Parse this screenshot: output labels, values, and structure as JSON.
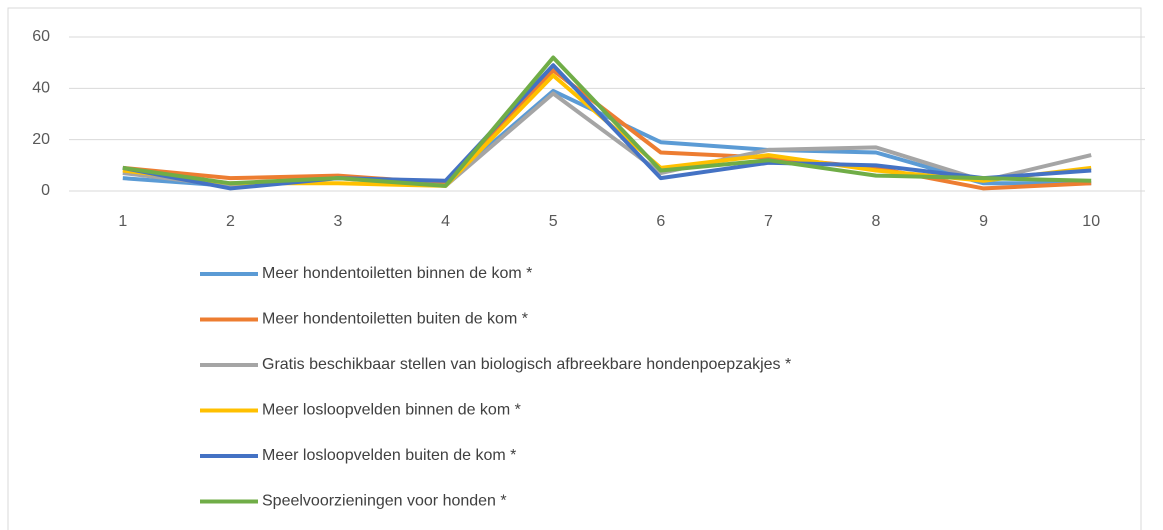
{
  "chart_data": {
    "type": "line",
    "categories": [
      1,
      2,
      3,
      4,
      5,
      6,
      7,
      8,
      9,
      10
    ],
    "ylim": [
      0,
      60
    ],
    "yticks": [
      0,
      20,
      40,
      60
    ],
    "grid": true,
    "legend": "bottom",
    "series": [
      {
        "name": "Meer hondentoiletten binnen de kom *",
        "color": "#5b9bd5",
        "values": [
          5,
          2,
          5,
          3,
          39,
          19,
          16,
          15,
          3,
          3
        ]
      },
      {
        "name": "Meer hondentoiletten buiten de kom *",
        "color": "#ed7d31",
        "values": [
          9,
          5,
          6,
          3,
          47,
          15,
          13,
          9,
          1,
          3
        ]
      },
      {
        "name": "Gratis beschikbaar stellen van biologisch afbreekbare hondenpoepzakjes *",
        "color": "#a5a5a5",
        "values": [
          7,
          2,
          5,
          2,
          38,
          7,
          16,
          17,
          4,
          14
        ]
      },
      {
        "name": "Meer losloopvelden binnen de kom *",
        "color": "#ffc000",
        "values": [
          8,
          3,
          3,
          2,
          45,
          9,
          14,
          8,
          4,
          9
        ]
      },
      {
        "name": "Meer losloopvelden buiten de kom *",
        "color": "#4472c4",
        "values": [
          9,
          1,
          5,
          4,
          49,
          5,
          11,
          10,
          5,
          8
        ]
      },
      {
        "name": "Speelvoorzieningen voor honden *",
        "color": "#70ad47",
        "values": [
          9,
          3,
          5,
          2,
          52,
          8,
          12,
          6,
          5,
          4
        ]
      }
    ]
  }
}
